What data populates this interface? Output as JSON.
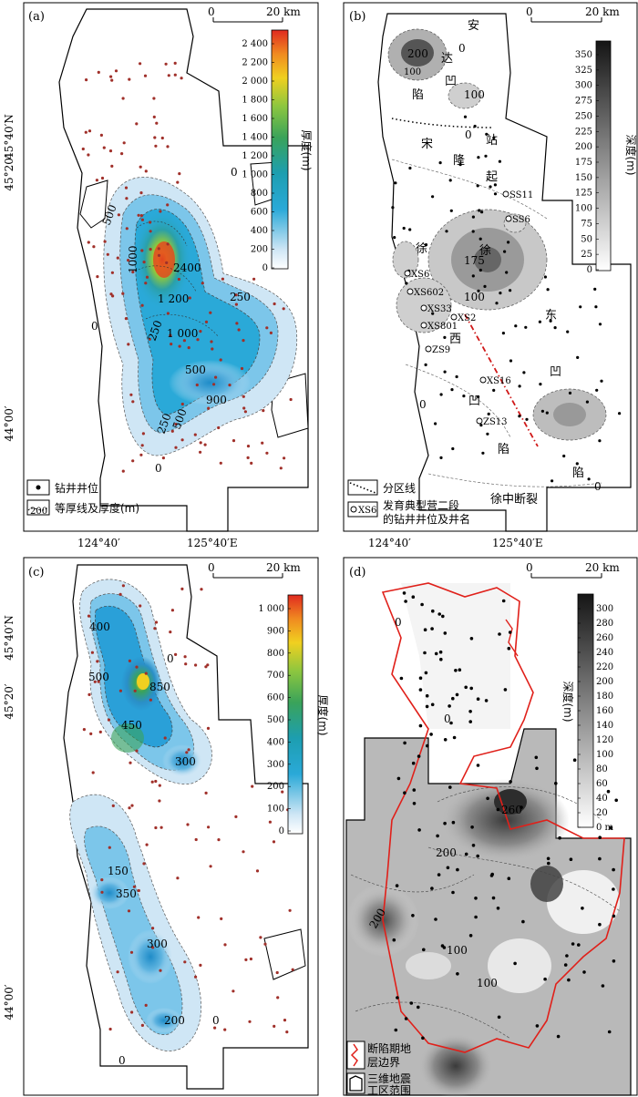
{
  "panels": {
    "a": {
      "label": "(a)",
      "scale": {
        "start": "0",
        "end": "20 km"
      },
      "colorbar": {
        "title": "厚度(m)",
        "ticks": [
          "2 400",
          "2 200",
          "2 000",
          "1 800",
          "1 600",
          "1 400",
          "1 200",
          "1 000",
          "800",
          "600",
          "400",
          "200",
          "0"
        ]
      },
      "contours": [
        "0",
        "500",
        "1000",
        "2400",
        "1 200",
        "250",
        "250",
        "1 000",
        "500",
        "900",
        "500",
        "250",
        "0",
        "0"
      ],
      "legend": [
        "钻井井位",
        "等厚线及厚度(m)"
      ],
      "legend_sample": "200"
    },
    "b": {
      "label": "(b)",
      "scale": {
        "start": "0",
        "end": "20 km"
      },
      "colorbar": {
        "title": "深度(m)",
        "ticks": [
          "350",
          "325",
          "300",
          "275",
          "250",
          "225",
          "200",
          "175",
          "150",
          "125",
          "100",
          "75",
          "50",
          "25",
          "0"
        ]
      },
      "regions": [
        "安",
        "达",
        "凹",
        "陷",
        "宋",
        "站",
        "隆",
        "起",
        "徐",
        "东",
        "西",
        "凹",
        "陷",
        "凹",
        "陷",
        "徐中断裂"
      ],
      "contours": [
        "200",
        "100",
        "100",
        "0",
        "0",
        "175",
        "100",
        "0",
        "0"
      ],
      "wells": [
        "SS11",
        "SS6",
        "XS6",
        "XS602",
        "XS33",
        "XS2",
        "XS801",
        "ZS9",
        "XS16",
        "ZS13"
      ],
      "legend": [
        "分区线",
        "发育典型营二段",
        "的钻井井位及井名"
      ],
      "legend_sample": "XS6"
    },
    "c": {
      "label": "(c)",
      "scale": {
        "start": "0",
        "end": "20 km"
      },
      "colorbar": {
        "title": "厚度(m)",
        "ticks": [
          "1 000",
          "900",
          "800",
          "700",
          "600",
          "500",
          "400",
          "300",
          "200",
          "100",
          "0"
        ]
      },
      "contours": [
        "0",
        "400",
        "500",
        "850",
        "450",
        "300",
        "150",
        "350",
        "300",
        "200",
        "0",
        "0"
      ]
    },
    "d": {
      "label": "(d)",
      "scale": {
        "start": "0",
        "end": "20 km"
      },
      "colorbar": {
        "title": "深度(m)",
        "ticks": [
          "300",
          "280",
          "260",
          "240",
          "220",
          "200",
          "180",
          "160",
          "140",
          "120",
          "100",
          "80",
          "60",
          "40",
          "20",
          "0 m"
        ]
      },
      "contours": [
        "0",
        "0",
        "260",
        "200",
        "200",
        "100",
        "100"
      ],
      "legend": [
        "断陷期地",
        "层边界",
        "三维地震",
        "工区范围"
      ]
    }
  },
  "axes": {
    "lat": [
      "45°40′N",
      "45°20′",
      "44°00′"
    ],
    "lon": [
      "124°40′",
      "125°40′E"
    ]
  },
  "colors": {
    "point": "#a0302a",
    "boundary_red": "#e0201a"
  }
}
